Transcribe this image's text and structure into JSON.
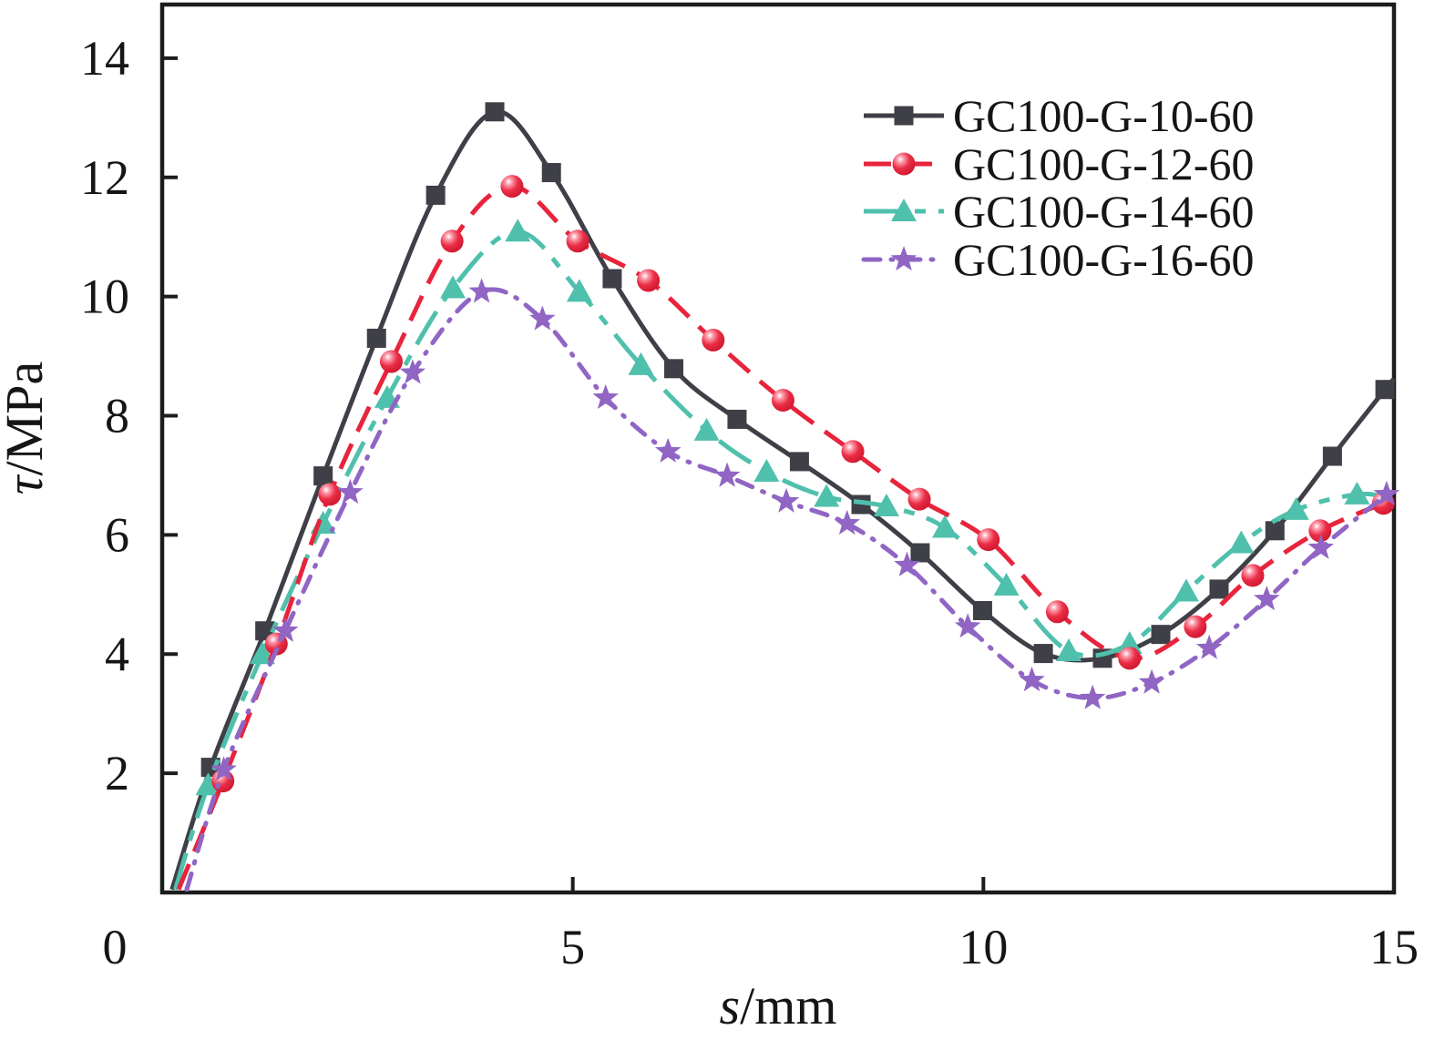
{
  "figure": {
    "background": "#ffffff",
    "axis_color": "#1c1c1c",
    "text_color": "#151515"
  },
  "chart_data": {
    "type": "line",
    "title": "",
    "xlabel": "s/mm",
    "ylabel": "τ/MPa",
    "x_axis": {
      "label_italic": "s",
      "label_unit": "/mm",
      "ticks": [
        0,
        5,
        10,
        15
      ],
      "range": [
        0,
        15
      ],
      "grid": false
    },
    "y_axis": {
      "label_italic": "τ",
      "label_unit": "/MPa",
      "ticks": [
        2,
        4,
        6,
        8,
        10,
        12,
        14
      ],
      "range": [
        0,
        14.9
      ],
      "grid": false
    },
    "legend_position": "top-right",
    "series": [
      {
        "name": "GC100-G-10-60",
        "color": "#3f3f47",
        "marker": "square",
        "line_style": "solid",
        "z_index": 0,
        "line_start": [
          0.12,
          0.05
        ],
        "line_end": [
          15.0,
          8.62
        ],
        "points": [
          [
            0.59,
            2.1
          ],
          [
            1.25,
            4.39
          ],
          [
            1.96,
            6.99
          ],
          [
            2.61,
            9.3
          ],
          [
            3.33,
            11.7
          ],
          [
            4.05,
            13.1
          ],
          [
            4.74,
            12.08
          ],
          [
            5.48,
            10.3
          ],
          [
            6.23,
            8.79
          ],
          [
            7.0,
            7.94
          ],
          [
            7.76,
            7.23
          ],
          [
            8.51,
            6.51
          ],
          [
            9.23,
            5.7
          ],
          [
            9.99,
            4.73
          ],
          [
            10.73,
            4.01
          ],
          [
            11.45,
            3.93
          ],
          [
            12.16,
            4.33
          ],
          [
            12.87,
            5.09
          ],
          [
            13.55,
            6.07
          ],
          [
            14.25,
            7.32
          ],
          [
            14.89,
            8.44
          ]
        ]
      },
      {
        "name": "GC100-G-12-60",
        "color": "#e8243c",
        "marker": "sphere",
        "line_style": "dashed",
        "z_index": 2,
        "line_start": [
          0.2,
          0.05
        ],
        "line_end": [
          15.0,
          6.62
        ],
        "points": [
          [
            0.74,
            1.87
          ],
          [
            1.39,
            4.17
          ],
          [
            2.04,
            6.68
          ],
          [
            2.79,
            8.91
          ],
          [
            3.53,
            10.93
          ],
          [
            4.26,
            11.85
          ],
          [
            5.06,
            10.93
          ],
          [
            5.92,
            10.27
          ],
          [
            6.71,
            9.27
          ],
          [
            7.56,
            8.26
          ],
          [
            8.41,
            7.4
          ],
          [
            9.22,
            6.6
          ],
          [
            10.06,
            5.92
          ],
          [
            10.9,
            4.71
          ],
          [
            11.78,
            3.93
          ],
          [
            12.58,
            4.46
          ],
          [
            13.28,
            5.32
          ],
          [
            14.1,
            6.07
          ],
          [
            14.87,
            6.53
          ]
        ]
      },
      {
        "name": "GC100-G-14-60",
        "color": "#4fc0ac",
        "marker": "triangle",
        "line_style": "dash",
        "z_index": 1,
        "line_start": [
          0.16,
          0.05
        ],
        "line_end": [
          14.95,
          6.62
        ],
        "points": [
          [
            0.56,
            1.8
          ],
          [
            1.22,
            4.0
          ],
          [
            1.96,
            6.19
          ],
          [
            2.74,
            8.3
          ],
          [
            3.54,
            10.14
          ],
          [
            4.33,
            11.09
          ],
          [
            5.08,
            10.08
          ],
          [
            5.83,
            8.85
          ],
          [
            6.63,
            7.75
          ],
          [
            7.36,
            7.06
          ],
          [
            8.09,
            6.64
          ],
          [
            8.82,
            6.48
          ],
          [
            9.53,
            6.12
          ],
          [
            10.28,
            5.15
          ],
          [
            11.04,
            4.05
          ],
          [
            11.78,
            4.17
          ],
          [
            12.47,
            5.05
          ],
          [
            13.14,
            5.86
          ],
          [
            13.81,
            6.42
          ],
          [
            14.55,
            6.68
          ]
        ]
      },
      {
        "name": "GC100-G-16-60",
        "color": "#9065c4",
        "marker": "star",
        "line_style": "dash-dot",
        "z_index": 3,
        "line_start": [
          0.3,
          0.05
        ],
        "line_end": [
          15.0,
          6.78
        ],
        "points": [
          [
            0.75,
            2.06
          ],
          [
            1.5,
            4.39
          ],
          [
            2.29,
            6.71
          ],
          [
            3.05,
            8.72
          ],
          [
            3.89,
            10.08
          ],
          [
            4.63,
            9.62
          ],
          [
            5.4,
            8.3
          ],
          [
            6.16,
            7.4
          ],
          [
            6.88,
            6.99
          ],
          [
            7.6,
            6.56
          ],
          [
            8.34,
            6.19
          ],
          [
            9.07,
            5.49
          ],
          [
            9.81,
            4.46
          ],
          [
            10.59,
            3.56
          ],
          [
            11.33,
            3.26
          ],
          [
            12.05,
            3.52
          ],
          [
            12.75,
            4.1
          ],
          [
            13.45,
            4.92
          ],
          [
            14.11,
            5.78
          ],
          [
            14.91,
            6.68
          ]
        ]
      }
    ]
  }
}
